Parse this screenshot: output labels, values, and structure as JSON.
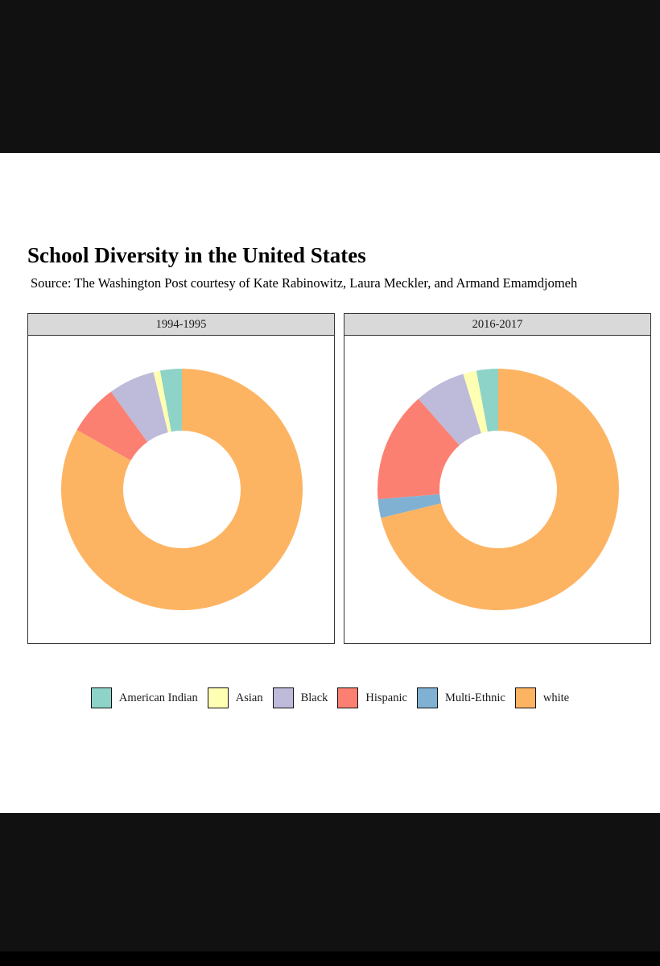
{
  "chart_data": {
    "type": "donut",
    "title": "School Diversity in the United States",
    "subtitle": "Source: The Washington Post courtesy of Kate Rabinowitz, Laura Meckler, and Armand Emamdjomeh",
    "legend_position": "bottom",
    "categories": [
      "American Indian",
      "Asian",
      "Black",
      "Hispanic",
      "Multi-Ethnic",
      "white"
    ],
    "colors": [
      "#8dd3c7",
      "#ffffb3",
      "#bebada",
      "#fb8072",
      "#80b1d3",
      "#fdb462"
    ],
    "panels": [
      {
        "label": "1994-1995",
        "values": [
          2.9,
          0.9,
          6.2,
          6.8,
          0.0,
          83.2
        ]
      },
      {
        "label": "2016-2017",
        "values": [
          2.9,
          1.8,
          6.8,
          14.8,
          2.5,
          71.2
        ]
      }
    ]
  }
}
